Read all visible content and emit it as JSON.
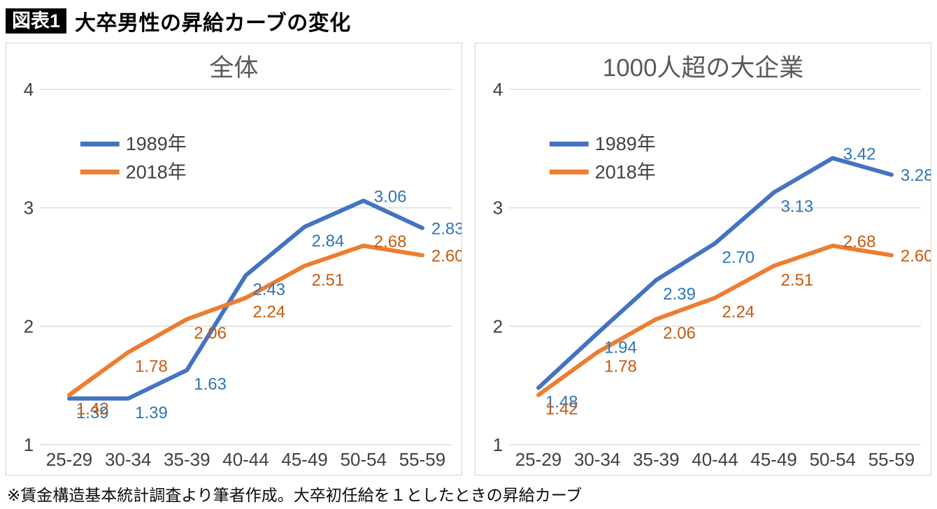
{
  "page": {
    "badge": "図表1",
    "title": "大卒男性の昇給カーブの変化",
    "footnote": "※賃金構造基本統計調査より筆者作成。大卒初任給を１としたときの昇給カーブ"
  },
  "theme": {
    "grid_color": "#D9D9D9",
    "axis_text_color": "#404040",
    "title_color": "#595959",
    "panel_border": "#D2D2D2",
    "background": "#FFFFFF"
  },
  "chart_data": [
    {
      "type": "line",
      "title": "全体",
      "categories": [
        "25-29",
        "30-34",
        "35-39",
        "40-44",
        "45-49",
        "50-54",
        "55-59"
      ],
      "ylim": [
        1,
        4
      ],
      "yticks": [
        1,
        2,
        3,
        4
      ],
      "grid": true,
      "legend_position": "upper-left-inside",
      "data_labels": true,
      "series": [
        {
          "name": "1989年",
          "color": "#4472C4",
          "label_color": "#2E75B6",
          "values": [
            1.39,
            1.39,
            1.63,
            2.43,
            2.84,
            3.06,
            2.83
          ]
        },
        {
          "name": "2018年",
          "color": "#ED7D31",
          "label_color": "#C55A11",
          "values": [
            1.42,
            1.78,
            2.06,
            2.24,
            2.51,
            2.68,
            2.6
          ]
        }
      ]
    },
    {
      "type": "line",
      "title": "1000人超の大企業",
      "categories": [
        "25-29",
        "30-34",
        "35-39",
        "40-44",
        "45-49",
        "50-54",
        "55-59"
      ],
      "ylim": [
        1,
        4
      ],
      "yticks": [
        1,
        2,
        3,
        4
      ],
      "grid": true,
      "legend_position": "upper-left-inside",
      "data_labels": true,
      "series": [
        {
          "name": "1989年",
          "color": "#4472C4",
          "label_color": "#2E75B6",
          "values": [
            1.48,
            1.94,
            2.39,
            2.7,
            3.13,
            3.42,
            3.28
          ]
        },
        {
          "name": "2018年",
          "color": "#ED7D31",
          "label_color": "#C55A11",
          "values": [
            1.42,
            1.78,
            2.06,
            2.24,
            2.51,
            2.68,
            2.6
          ]
        }
      ]
    }
  ]
}
